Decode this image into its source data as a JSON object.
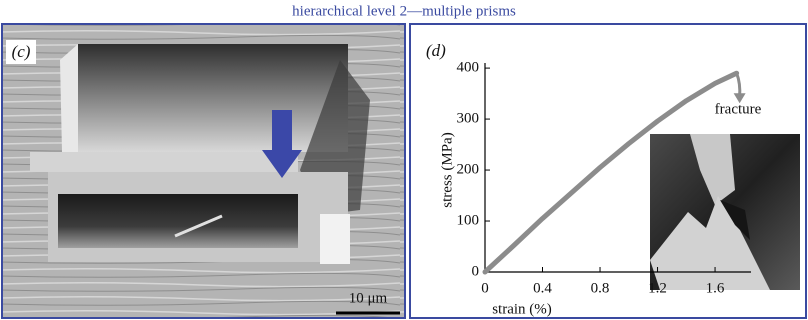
{
  "title": "hierarchical level 2—multiple prisms",
  "panel_c": {
    "label": "(c)",
    "scale_bar": "10 μm"
  },
  "chart_data": {
    "type": "line",
    "panel_label": "(d)",
    "x_label": "strain (%)",
    "y_label": "stress (MPa)",
    "annotation": "fracture",
    "x": [
      0,
      0.2,
      0.4,
      0.6,
      0.8,
      1.0,
      1.2,
      1.4,
      1.6,
      1.75
    ],
    "series": [
      {
        "color": "#8c8c8c",
        "values": [
          0,
          52,
          105,
          155,
          205,
          252,
          296,
          336,
          370,
          390
        ]
      }
    ],
    "xlim": [
      0,
      1.85
    ],
    "xticks": [
      0,
      0.4,
      0.8,
      1.2,
      1.6
    ],
    "ylim": [
      0,
      410
    ],
    "yticks": [
      0,
      100,
      200,
      300,
      400
    ]
  }
}
